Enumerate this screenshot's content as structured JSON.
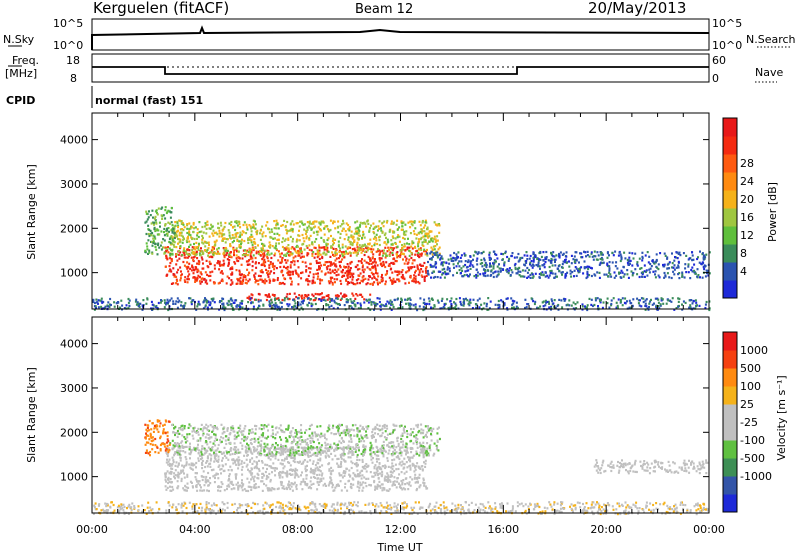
{
  "header": {
    "station": "Kerguelen (fitACF)",
    "beam": "Beam 12",
    "date": "20/May/2013"
  },
  "nsky_panel": {
    "left_label": "N.Sky",
    "right_label": "N.Search",
    "left_ticks": [
      "10^5",
      "10^0"
    ],
    "right_ticks": [
      "10^5",
      "10^0"
    ]
  },
  "freq_panel": {
    "left_label_line1": "Freq.",
    "left_label_line2": "[MHz]",
    "left_ticks": [
      "18",
      "8"
    ],
    "right_ticks": [
      "60",
      "0"
    ],
    "right_label": "Nave"
  },
  "cpid_panel": {
    "label": "CPID",
    "value": "normal (fast) 151"
  },
  "chart_data": [
    {
      "type": "heatmap",
      "name": "power",
      "ylabel": "Slant Range [km]",
      "ylim": [
        180,
        4600
      ],
      "yticks": [
        "1000",
        "2000",
        "3000",
        "4000"
      ],
      "xlim_hours": [
        0,
        24
      ],
      "colorbar_label": "Power [dB]",
      "colorbar_ticks": [
        "4",
        "8",
        "12",
        "16",
        "20",
        "24",
        "28"
      ],
      "colorbar_colors": [
        "#1e2ad8",
        "#2b54b0",
        "#3a8c5a",
        "#5fbf3c",
        "#9fc640",
        "#f5b21a",
        "#ff8a10",
        "#ff5a10",
        "#f52a10",
        "#e81818"
      ],
      "regions": [
        {
          "label": "main echo band",
          "x": [
            2.8,
            13.0
          ],
          "y": [
            750,
            1600
          ],
          "levels": [
            0.75,
            0.95
          ]
        },
        {
          "label": "lower echo arc",
          "x": [
            6.0,
            10.8
          ],
          "y": [
            400,
            560
          ],
          "levels": [
            0.8,
            0.95
          ]
        },
        {
          "label": "upper echo band",
          "x": [
            3.0,
            13.5
          ],
          "y": [
            1400,
            2200
          ],
          "levels": [
            0.35,
            0.6
          ]
        },
        {
          "label": "early patch",
          "x": [
            2.0,
            3.2
          ],
          "y": [
            1400,
            2500
          ],
          "levels": [
            0.2,
            0.45
          ]
        },
        {
          "label": "late echoes",
          "x": [
            13.0,
            24.0
          ],
          "y": [
            900,
            1500
          ],
          "levels": [
            0.05,
            0.25
          ]
        },
        {
          "label": "ground clutter",
          "x": [
            0,
            24
          ],
          "y": [
            180,
            450
          ],
          "levels": [
            0.05,
            0.3
          ]
        }
      ]
    },
    {
      "type": "heatmap",
      "name": "velocity",
      "ylabel": "Slant Range [km]",
      "ylim": [
        180,
        4600
      ],
      "yticks": [
        "1000",
        "2000",
        "3000",
        "4000"
      ],
      "xlim_hours": [
        0,
        24
      ],
      "xticks": [
        "00:00",
        "04:00",
        "08:00",
        "12:00",
        "16:00",
        "20:00",
        "00:00"
      ],
      "xlabel": "Time UT",
      "colorbar_label": "Velocity [m s⁻¹]",
      "colorbar_ticks": [
        "1000",
        "500",
        "100",
        "25",
        "-25",
        "-100",
        "-500",
        "-1000"
      ],
      "colorbar_colors": [
        "#1e2ad8",
        "#3355a8",
        "#3d8f55",
        "#5fc040",
        "#c0c0c0",
        "#c0c0c0",
        "#f5b21a",
        "#ff8a10",
        "#f54010",
        "#e81818"
      ],
      "regions": [
        {
          "label": "main echo band",
          "x": [
            2.8,
            13.0
          ],
          "y": [
            700,
            1700
          ],
          "levels": [
            0.45,
            0.55
          ]
        },
        {
          "label": "upper echo band",
          "x": [
            3.0,
            13.5
          ],
          "y": [
            1500,
            2200
          ],
          "levels": [
            0.3,
            0.6
          ]
        },
        {
          "label": "early patch",
          "x": [
            2.0,
            3.0
          ],
          "y": [
            1500,
            2300
          ],
          "levels": [
            0.7,
            0.85
          ]
        },
        {
          "label": "late echoes",
          "x": [
            19.5,
            24.0
          ],
          "y": [
            1100,
            1400
          ],
          "levels": [
            0.45,
            0.55
          ]
        },
        {
          "label": "ground clutter",
          "x": [
            0,
            24
          ],
          "y": [
            180,
            450
          ],
          "levels": [
            0.4,
            0.7
          ]
        }
      ]
    }
  ],
  "colors": {
    "background": "#ffffff",
    "axis": "#000000"
  }
}
